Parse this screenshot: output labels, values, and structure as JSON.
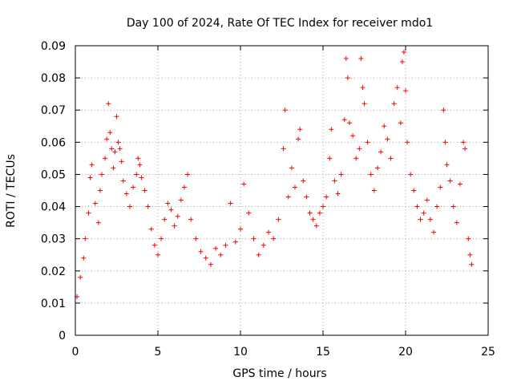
{
  "chart_data": {
    "type": "scatter",
    "title": "Day 100 of 2024, Rate Of TEC Index for receiver mdo1",
    "xlabel": "GPS time / hours",
    "ylabel": "ROTI / TECUs",
    "xlim": [
      0,
      25
    ],
    "ylim": [
      0,
      0.09
    ],
    "xticks": [
      0,
      5,
      10,
      15,
      20,
      25
    ],
    "xtick_labels": [
      "0",
      "5",
      "10",
      "15",
      "20",
      "25"
    ],
    "yticks": [
      0,
      0.01,
      0.02,
      0.03,
      0.04,
      0.05,
      0.06,
      0.07,
      0.08,
      0.09
    ],
    "ytick_labels": [
      "0",
      "0.01",
      "0.02",
      "0.03",
      "0.04",
      "0.05",
      "0.06",
      "0.07",
      "0.08",
      "0.09"
    ],
    "grid": true,
    "marker": "+",
    "series": [
      {
        "name": "ROTI",
        "color": "#ff0000",
        "points": [
          [
            0.1,
            0.012
          ],
          [
            0.3,
            0.018
          ],
          [
            0.5,
            0.024
          ],
          [
            0.6,
            0.03
          ],
          [
            0.8,
            0.038
          ],
          [
            0.9,
            0.049
          ],
          [
            1.0,
            0.053
          ],
          [
            1.2,
            0.041
          ],
          [
            1.4,
            0.035
          ],
          [
            1.5,
            0.045
          ],
          [
            1.6,
            0.05
          ],
          [
            1.8,
            0.055
          ],
          [
            1.9,
            0.061
          ],
          [
            2.0,
            0.072
          ],
          [
            2.1,
            0.063
          ],
          [
            2.2,
            0.058
          ],
          [
            2.3,
            0.052
          ],
          [
            2.4,
            0.057
          ],
          [
            2.5,
            0.068
          ],
          [
            2.6,
            0.06
          ],
          [
            2.7,
            0.058
          ],
          [
            2.8,
            0.054
          ],
          [
            2.9,
            0.048
          ],
          [
            3.1,
            0.044
          ],
          [
            3.3,
            0.04
          ],
          [
            3.5,
            0.046
          ],
          [
            3.7,
            0.05
          ],
          [
            3.8,
            0.055
          ],
          [
            3.9,
            0.053
          ],
          [
            4.0,
            0.049
          ],
          [
            4.2,
            0.045
          ],
          [
            4.4,
            0.04
          ],
          [
            4.6,
            0.033
          ],
          [
            4.8,
            0.028
          ],
          [
            5.0,
            0.025
          ],
          [
            5.2,
            0.03
          ],
          [
            5.4,
            0.036
          ],
          [
            5.6,
            0.041
          ],
          [
            5.8,
            0.039
          ],
          [
            6.0,
            0.034
          ],
          [
            6.2,
            0.037
          ],
          [
            6.4,
            0.042
          ],
          [
            6.6,
            0.046
          ],
          [
            6.8,
            0.05
          ],
          [
            7.0,
            0.036
          ],
          [
            7.3,
            0.03
          ],
          [
            7.6,
            0.026
          ],
          [
            7.9,
            0.024
          ],
          [
            8.2,
            0.022
          ],
          [
            8.5,
            0.027
          ],
          [
            8.8,
            0.025
          ],
          [
            9.1,
            0.028
          ],
          [
            9.4,
            0.041
          ],
          [
            9.7,
            0.029
          ],
          [
            10.0,
            0.033
          ],
          [
            10.2,
            0.047
          ],
          [
            10.5,
            0.038
          ],
          [
            10.8,
            0.03
          ],
          [
            11.1,
            0.025
          ],
          [
            11.4,
            0.028
          ],
          [
            11.7,
            0.032
          ],
          [
            12.0,
            0.03
          ],
          [
            12.3,
            0.036
          ],
          [
            12.6,
            0.058
          ],
          [
            12.7,
            0.07
          ],
          [
            12.9,
            0.043
          ],
          [
            13.1,
            0.052
          ],
          [
            13.3,
            0.046
          ],
          [
            13.5,
            0.061
          ],
          [
            13.6,
            0.064
          ],
          [
            13.8,
            0.048
          ],
          [
            14.0,
            0.043
          ],
          [
            14.2,
            0.038
          ],
          [
            14.4,
            0.036
          ],
          [
            14.6,
            0.034
          ],
          [
            14.8,
            0.038
          ],
          [
            15.0,
            0.04
          ],
          [
            15.2,
            0.043
          ],
          [
            15.4,
            0.055
          ],
          [
            15.5,
            0.064
          ],
          [
            15.7,
            0.048
          ],
          [
            15.9,
            0.044
          ],
          [
            16.1,
            0.05
          ],
          [
            16.3,
            0.067
          ],
          [
            16.4,
            0.086
          ],
          [
            16.5,
            0.08
          ],
          [
            16.6,
            0.066
          ],
          [
            16.8,
            0.062
          ],
          [
            17.0,
            0.055
          ],
          [
            17.2,
            0.058
          ],
          [
            17.3,
            0.086
          ],
          [
            17.4,
            0.077
          ],
          [
            17.5,
            0.072
          ],
          [
            17.7,
            0.06
          ],
          [
            17.9,
            0.05
          ],
          [
            18.1,
            0.045
          ],
          [
            18.3,
            0.052
          ],
          [
            18.5,
            0.057
          ],
          [
            18.7,
            0.065
          ],
          [
            18.9,
            0.061
          ],
          [
            19.1,
            0.055
          ],
          [
            19.3,
            0.072
          ],
          [
            19.5,
            0.077
          ],
          [
            19.7,
            0.066
          ],
          [
            19.8,
            0.085
          ],
          [
            19.9,
            0.088
          ],
          [
            20.0,
            0.076
          ],
          [
            20.1,
            0.06
          ],
          [
            20.3,
            0.05
          ],
          [
            20.5,
            0.045
          ],
          [
            20.7,
            0.04
          ],
          [
            20.9,
            0.036
          ],
          [
            21.1,
            0.038
          ],
          [
            21.3,
            0.042
          ],
          [
            21.5,
            0.036
          ],
          [
            21.7,
            0.032
          ],
          [
            21.9,
            0.04
          ],
          [
            22.1,
            0.046
          ],
          [
            22.3,
            0.07
          ],
          [
            22.4,
            0.06
          ],
          [
            22.5,
            0.053
          ],
          [
            22.7,
            0.048
          ],
          [
            22.9,
            0.04
          ],
          [
            23.1,
            0.035
          ],
          [
            23.3,
            0.047
          ],
          [
            23.5,
            0.06
          ],
          [
            23.6,
            0.058
          ],
          [
            23.8,
            0.03
          ],
          [
            23.9,
            0.025
          ],
          [
            24.0,
            0.022
          ]
        ]
      }
    ]
  }
}
